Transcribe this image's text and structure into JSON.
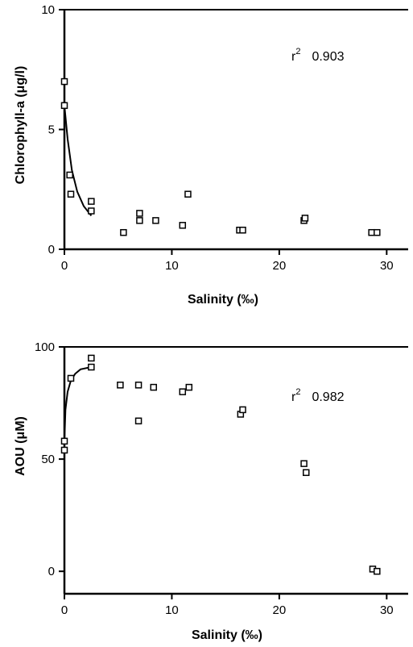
{
  "chart_data": [
    {
      "type": "scatter",
      "title": "",
      "xlabel": "Salinity (‰)",
      "ylabel": "Chlorophyll-a (μg/l)",
      "xlim": [
        0,
        32
      ],
      "ylim": [
        0,
        10
      ],
      "xticks": [
        0,
        10,
        20,
        30
      ],
      "yticks": [
        0,
        5,
        10
      ],
      "annotation": "r² 0.903",
      "grid": false,
      "series": [
        {
          "marker": "open-square",
          "points": [
            [
              0,
              7.0
            ],
            [
              0,
              6.0
            ],
            [
              0.5,
              3.1
            ],
            [
              0.6,
              2.3
            ],
            [
              2.5,
              2.0
            ],
            [
              2.5,
              1.6
            ],
            [
              5.5,
              0.7
            ],
            [
              7.0,
              1.5
            ],
            [
              7.0,
              1.2
            ],
            [
              8.5,
              1.2
            ],
            [
              11.0,
              1.0
            ],
            [
              11.5,
              2.3
            ],
            [
              16.3,
              0.8
            ],
            [
              16.6,
              0.8
            ],
            [
              22.3,
              1.2
            ],
            [
              22.4,
              1.3
            ],
            [
              28.6,
              0.7
            ],
            [
              29.1,
              0.7
            ]
          ]
        }
      ],
      "fit_curve": {
        "points": [
          [
            0,
            6.0
          ],
          [
            0.3,
            4.6
          ],
          [
            0.7,
            3.3
          ],
          [
            1.2,
            2.4
          ],
          [
            1.8,
            1.8
          ],
          [
            2.5,
            1.4
          ]
        ]
      }
    },
    {
      "type": "scatter",
      "title": "",
      "xlabel": "Salinity (‰)",
      "ylabel": "AOU (μM)",
      "xlim": [
        0,
        32
      ],
      "ylim": [
        -10,
        100
      ],
      "xticks": [
        0,
        10,
        20,
        30
      ],
      "yticks": [
        0,
        50,
        100
      ],
      "annotation": "r² 0.982",
      "grid": false,
      "series": [
        {
          "marker": "open-square",
          "points": [
            [
              0,
              58
            ],
            [
              0,
              54
            ],
            [
              0.6,
              86
            ],
            [
              2.5,
              95
            ],
            [
              2.5,
              91
            ],
            [
              5.2,
              83
            ],
            [
              6.9,
              83
            ],
            [
              6.9,
              67
            ],
            [
              8.3,
              82
            ],
            [
              11.0,
              80
            ],
            [
              11.6,
              82
            ],
            [
              16.4,
              70
            ],
            [
              16.6,
              72
            ],
            [
              22.3,
              48
            ],
            [
              22.5,
              44
            ],
            [
              28.7,
              1
            ],
            [
              29.1,
              0
            ]
          ]
        }
      ],
      "fit_curve": {
        "points": [
          [
            0,
            58
          ],
          [
            0.1,
            72
          ],
          [
            0.3,
            80
          ],
          [
            0.6,
            85
          ],
          [
            1.0,
            88
          ],
          [
            1.5,
            90
          ],
          [
            2.5,
            91
          ]
        ]
      }
    }
  ]
}
